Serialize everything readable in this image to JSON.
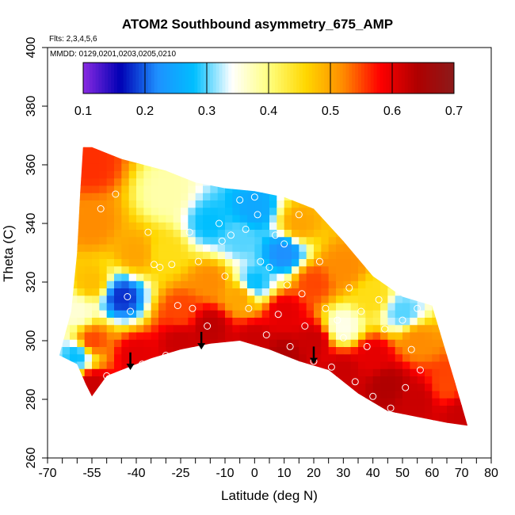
{
  "chart_data": {
    "type": "heatmap",
    "title": "ATOM2 Southbound asymmetry_675_AMP",
    "flights_note": "Flts: 2,3,4,5,6",
    "dates_note": "MMDD: 0129,0201,0203,0205,0210",
    "xlabel": "Latitude (deg N)",
    "ylabel": "Theta (C)",
    "xlim": [
      -70,
      80
    ],
    "ylim": [
      260,
      400
    ],
    "x_ticks": [
      -70,
      -55,
      -40,
      -25,
      -10,
      0,
      10,
      20,
      30,
      40,
      50,
      60,
      70,
      80
    ],
    "x_minor_ticks": [
      -65,
      -60,
      -50,
      -45,
      -35,
      -30,
      -20,
      -15,
      -5,
      5,
      15,
      25,
      35,
      45,
      55,
      65,
      75
    ],
    "y_ticks": [
      260,
      280,
      300,
      320,
      340,
      360,
      380,
      400
    ],
    "colorbar": {
      "range": [
        0.1,
        0.7
      ],
      "ticks": [
        0.1,
        0.2,
        0.3,
        0.4,
        0.5,
        0.6,
        0.7
      ],
      "colors": [
        "#8a2be2",
        "#0000b4",
        "#1e90ff",
        "#00bfff",
        "#ffffff",
        "#ffff80",
        "#ffd700",
        "#ff8c00",
        "#ff0000",
        "#b00000",
        "#8b1a1a"
      ]
    },
    "field": [
      {
        "lat": -55,
        "theta": 285,
        "value": 0.62
      },
      {
        "lat": -55,
        "theta": 300,
        "value": 0.55
      },
      {
        "lat": -55,
        "theta": 320,
        "value": 0.48
      },
      {
        "lat": -55,
        "theta": 340,
        "value": 0.52
      },
      {
        "lat": -55,
        "theta": 360,
        "value": 0.56
      },
      {
        "lat": -60,
        "theta": 295,
        "value": 0.28
      },
      {
        "lat": -60,
        "theta": 310,
        "value": 0.36
      },
      {
        "lat": -45,
        "theta": 315,
        "value": 0.18
      },
      {
        "lat": -40,
        "theta": 330,
        "value": 0.5
      },
      {
        "lat": -40,
        "theta": 295,
        "value": 0.6
      },
      {
        "lat": -30,
        "theta": 350,
        "value": 0.38
      },
      {
        "lat": -30,
        "theta": 330,
        "value": 0.45
      },
      {
        "lat": -25,
        "theta": 310,
        "value": 0.55
      },
      {
        "lat": -25,
        "theta": 300,
        "value": 0.62
      },
      {
        "lat": -15,
        "theta": 340,
        "value": 0.28
      },
      {
        "lat": -15,
        "theta": 320,
        "value": 0.52
      },
      {
        "lat": -15,
        "theta": 305,
        "value": 0.63
      },
      {
        "lat": -5,
        "theta": 335,
        "value": 0.3
      },
      {
        "lat": -5,
        "theta": 315,
        "value": 0.5
      },
      {
        "lat": 0,
        "theta": 345,
        "value": 0.25
      },
      {
        "lat": 0,
        "theta": 320,
        "value": 0.28
      },
      {
        "lat": 0,
        "theta": 300,
        "value": 0.62
      },
      {
        "lat": 10,
        "theta": 330,
        "value": 0.22
      },
      {
        "lat": 10,
        "theta": 310,
        "value": 0.6
      },
      {
        "lat": 10,
        "theta": 295,
        "value": 0.64
      },
      {
        "lat": 15,
        "theta": 340,
        "value": 0.5
      },
      {
        "lat": 20,
        "theta": 320,
        "value": 0.55
      },
      {
        "lat": 20,
        "theta": 300,
        "value": 0.62
      },
      {
        "lat": 30,
        "theta": 325,
        "value": 0.52
      },
      {
        "lat": 30,
        "theta": 305,
        "value": 0.35
      },
      {
        "lat": 30,
        "theta": 290,
        "value": 0.62
      },
      {
        "lat": 40,
        "theta": 315,
        "value": 0.45
      },
      {
        "lat": 40,
        "theta": 295,
        "value": 0.6
      },
      {
        "lat": 45,
        "theta": 285,
        "value": 0.64
      },
      {
        "lat": 50,
        "theta": 310,
        "value": 0.3
      },
      {
        "lat": 55,
        "theta": 300,
        "value": 0.52
      },
      {
        "lat": 55,
        "theta": 280,
        "value": 0.62
      },
      {
        "lat": 65,
        "theta": 285,
        "value": 0.55
      },
      {
        "lat": 70,
        "theta": 275,
        "value": 0.62
      }
    ],
    "observations": [
      {
        "lat": -52,
        "theta": 345
      },
      {
        "lat": -47,
        "theta": 350
      },
      {
        "lat": -43,
        "theta": 315
      },
      {
        "lat": -42,
        "theta": 310
      },
      {
        "lat": -36,
        "theta": 337
      },
      {
        "lat": -34,
        "theta": 326
      },
      {
        "lat": -32,
        "theta": 325
      },
      {
        "lat": -28,
        "theta": 326
      },
      {
        "lat": -26,
        "theta": 312
      },
      {
        "lat": -22,
        "theta": 337
      },
      {
        "lat": -21,
        "theta": 311
      },
      {
        "lat": -19,
        "theta": 327
      },
      {
        "lat": -16,
        "theta": 305
      },
      {
        "lat": -12,
        "theta": 340
      },
      {
        "lat": -11,
        "theta": 334
      },
      {
        "lat": -10,
        "theta": 322
      },
      {
        "lat": -8,
        "theta": 336
      },
      {
        "lat": -5,
        "theta": 348
      },
      {
        "lat": -3,
        "theta": 338
      },
      {
        "lat": -2,
        "theta": 311
      },
      {
        "lat": 0,
        "theta": 349
      },
      {
        "lat": 1,
        "theta": 343
      },
      {
        "lat": 2,
        "theta": 327
      },
      {
        "lat": 4,
        "theta": 302
      },
      {
        "lat": 5,
        "theta": 325
      },
      {
        "lat": 7,
        "theta": 336
      },
      {
        "lat": 8,
        "theta": 309
      },
      {
        "lat": 10,
        "theta": 333
      },
      {
        "lat": 11,
        "theta": 319
      },
      {
        "lat": 12,
        "theta": 298
      },
      {
        "lat": 15,
        "theta": 343
      },
      {
        "lat": 16,
        "theta": 316
      },
      {
        "lat": 17,
        "theta": 305
      },
      {
        "lat": 20,
        "theta": 293
      },
      {
        "lat": 22,
        "theta": 327
      },
      {
        "lat": 24,
        "theta": 311
      },
      {
        "lat": 26,
        "theta": 291
      },
      {
        "lat": 28,
        "theta": 307
      },
      {
        "lat": 30,
        "theta": 301
      },
      {
        "lat": 32,
        "theta": 318
      },
      {
        "lat": 34,
        "theta": 286
      },
      {
        "lat": 36,
        "theta": 310
      },
      {
        "lat": 38,
        "theta": 298
      },
      {
        "lat": 40,
        "theta": 281
      },
      {
        "lat": 42,
        "theta": 314
      },
      {
        "lat": 44,
        "theta": 304
      },
      {
        "lat": 46,
        "theta": 277
      },
      {
        "lat": 48,
        "theta": 318
      },
      {
        "lat": 50,
        "theta": 307
      },
      {
        "lat": 51,
        "theta": 284
      },
      {
        "lat": 53,
        "theta": 297
      },
      {
        "lat": 55,
        "theta": 311
      },
      {
        "lat": 56,
        "theta": 290
      },
      {
        "lat": -50,
        "theta": 288
      },
      {
        "lat": -38,
        "theta": 292
      },
      {
        "lat": -30,
        "theta": 295
      }
    ],
    "arrows": [
      {
        "lat": -42,
        "theta_top": 296,
        "theta_tip": 290
      },
      {
        "lat": -18,
        "theta_top": 303,
        "theta_tip": 297
      },
      {
        "lat": 20,
        "theta_top": 298,
        "theta_tip": 292
      }
    ]
  }
}
